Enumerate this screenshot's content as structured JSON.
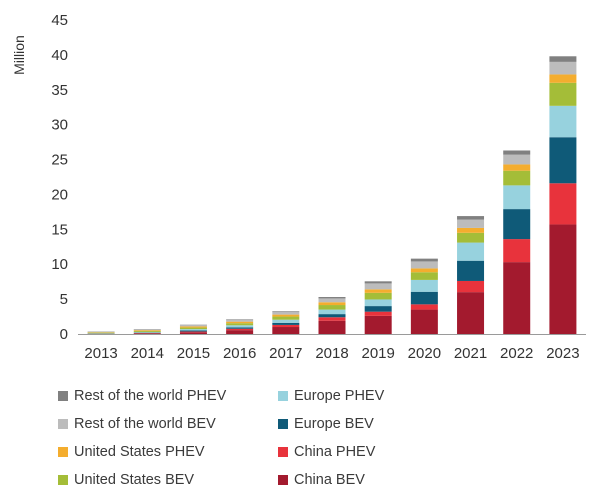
{
  "chart_data": {
    "type": "bar",
    "stacked": true,
    "title": "",
    "xlabel": "",
    "ylabel": "Million",
    "ylim": [
      0,
      45
    ],
    "yticks": [
      0,
      5,
      10,
      15,
      20,
      25,
      30,
      35,
      40,
      45
    ],
    "grid": false,
    "legend_position": "bottom",
    "categories": [
      "2013",
      "2014",
      "2015",
      "2016",
      "2017",
      "2018",
      "2019",
      "2020",
      "2021",
      "2022",
      "2023"
    ],
    "series": [
      {
        "name": "China BEV",
        "color": "#a31a2e",
        "values": [
          0.02,
          0.1,
          0.25,
          0.55,
          1.0,
          1.9,
          2.6,
          3.5,
          6.0,
          10.3,
          15.7
        ]
      },
      {
        "name": "China PHEV",
        "color": "#e8333c",
        "values": [
          0.01,
          0.03,
          0.1,
          0.2,
          0.3,
          0.5,
          0.6,
          0.75,
          1.6,
          3.3,
          5.9
        ]
      },
      {
        "name": "Europe BEV",
        "color": "#0f5a78",
        "values": [
          0.03,
          0.06,
          0.15,
          0.2,
          0.3,
          0.45,
          0.8,
          1.8,
          2.9,
          4.3,
          6.6
        ]
      },
      {
        "name": "Europe PHEV",
        "color": "#97d2de",
        "values": [
          0.04,
          0.08,
          0.2,
          0.3,
          0.45,
          0.65,
          0.95,
          1.7,
          2.6,
          3.4,
          4.5
        ]
      },
      {
        "name": "United States BEV",
        "color": "#a4bd38",
        "values": [
          0.1,
          0.15,
          0.22,
          0.3,
          0.45,
          0.65,
          0.95,
          1.1,
          1.4,
          2.1,
          3.3
        ]
      },
      {
        "name": "United States PHEV",
        "color": "#f4ad2e",
        "values": [
          0.06,
          0.12,
          0.17,
          0.22,
          0.28,
          0.4,
          0.5,
          0.55,
          0.7,
          0.9,
          1.2
        ]
      },
      {
        "name": "Rest of the world BEV",
        "color": "#bcbcbc",
        "values": [
          0.08,
          0.12,
          0.18,
          0.25,
          0.35,
          0.55,
          0.85,
          1.0,
          1.2,
          1.4,
          1.8
        ]
      },
      {
        "name": "Rest of the world PHEV",
        "color": "#808080",
        "values": [
          0.03,
          0.04,
          0.06,
          0.08,
          0.12,
          0.2,
          0.3,
          0.4,
          0.5,
          0.6,
          0.8
        ]
      }
    ]
  },
  "legend": {
    "items": [
      {
        "label": "Rest of the world PHEV",
        "color": "#808080"
      },
      {
        "label": "Europe PHEV",
        "color": "#97d2de"
      },
      {
        "label": "Rest of the world BEV",
        "color": "#bcbcbc"
      },
      {
        "label": "Europe BEV",
        "color": "#0f5a78"
      },
      {
        "label": "United States PHEV",
        "color": "#f4ad2e"
      },
      {
        "label": "China PHEV",
        "color": "#e8333c"
      },
      {
        "label": "United States BEV",
        "color": "#a4bd38"
      },
      {
        "label": "China BEV",
        "color": "#a31a2e"
      }
    ]
  }
}
